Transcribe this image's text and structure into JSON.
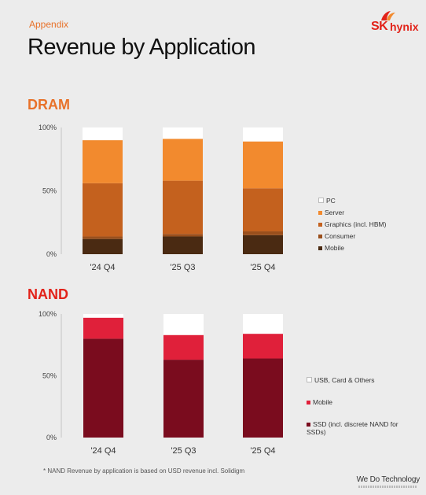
{
  "header": {
    "appendix": "Appendix",
    "title": "Revenue by Application",
    "logo_text_left": "SK",
    "logo_text_right": "hynix"
  },
  "sections": {
    "dram": "DRAM",
    "nand": "NAND"
  },
  "chart_data": [
    {
      "type": "bar",
      "stacked": true,
      "title": "DRAM",
      "categories": [
        "'24 Q4",
        "'25 Q3",
        "'25 Q4"
      ],
      "ytick_labels": [
        "0%",
        "50%",
        "100%"
      ],
      "ylim": [
        0,
        100
      ],
      "legend_placement": "right",
      "series": [
        {
          "name": "Mobile",
          "color": "#4a2a12",
          "values": [
            12,
            14,
            15
          ]
        },
        {
          "name": "Consumer",
          "color": "#9a4f1c",
          "values": [
            2,
            2,
            3
          ]
        },
        {
          "name": "Graphics (incl. HBM)",
          "color": "#c4611e",
          "values": [
            42,
            42,
            34
          ]
        },
        {
          "name": "Server",
          "color": "#f28a2e",
          "values": [
            34,
            33,
            37
          ]
        },
        {
          "name": "PC",
          "color": "#ffffff",
          "values": [
            10,
            9,
            11
          ]
        }
      ]
    },
    {
      "type": "bar",
      "stacked": true,
      "title": "NAND",
      "categories": [
        "'24 Q4",
        "'25 Q3",
        "'25 Q4"
      ],
      "ytick_labels": [
        "0%",
        "50%",
        "100%"
      ],
      "ylim": [
        0,
        100
      ],
      "legend_placement": "right",
      "series": [
        {
          "name": "SSD (incl. discrete NAND for SSDs)",
          "color": "#7a0c1e",
          "values": [
            80,
            63,
            64
          ]
        },
        {
          "name": "Mobile",
          "color": "#e0203a",
          "values": [
            17,
            20,
            20
          ]
        },
        {
          "name": "USB, Card & Others",
          "color": "#ffffff",
          "values": [
            3,
            17,
            16
          ]
        }
      ]
    }
  ],
  "footnote": "* NAND Revenue by application is based on USD revenue incl. Solidigm",
  "tagline": "We Do Technology"
}
